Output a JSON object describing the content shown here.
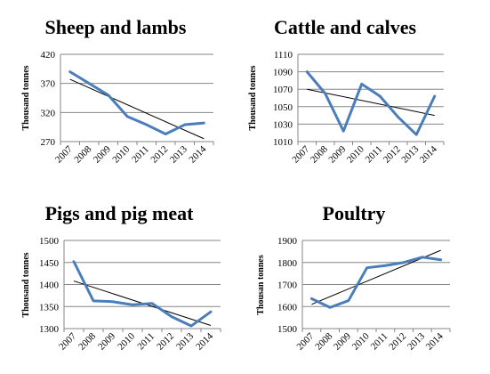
{
  "chart_data": [
    {
      "type": "line",
      "title": "Sheep and lambs",
      "ylabel": "Thousand tonnes",
      "xlabel": "",
      "categories": [
        "2007",
        "2008",
        "2009",
        "2010",
        "2011",
        "2012",
        "2013",
        "2014"
      ],
      "ylim": [
        270,
        420
      ],
      "yticks": [
        270,
        320,
        370,
        420
      ],
      "grid": "horizontal",
      "series": [
        {
          "values": [
            390,
            370,
            350,
            313,
            299,
            283,
            299,
            302
          ],
          "color": "#4a7ebb"
        }
      ],
      "trendline": {
        "values": [
          377,
          275
        ],
        "color": "#000000"
      }
    },
    {
      "type": "line",
      "title": "Cattle and calves",
      "ylabel": "Thousand tonnes",
      "xlabel": "",
      "categories": [
        "2007",
        "2008",
        "2009",
        "2010",
        "2011",
        "2012",
        "2013",
        "2014"
      ],
      "ylim": [
        1010,
        1110
      ],
      "yticks": [
        1010,
        1030,
        1050,
        1070,
        1090,
        1110
      ],
      "grid": "horizontal",
      "series": [
        {
          "values": [
            1090,
            1065,
            1022,
            1076,
            1062,
            1038,
            1018,
            1062
          ],
          "color": "#4a7ebb"
        }
      ],
      "trendline": {
        "values": [
          1070,
          1040
        ],
        "color": "#000000"
      }
    },
    {
      "type": "line",
      "title": "Pigs and pig meat",
      "ylabel": "Thousand tonnes",
      "xlabel": "",
      "categories": [
        "2007",
        "2008",
        "2009",
        "2010",
        "2011",
        "2012",
        "2013",
        "2014"
      ],
      "ylim": [
        1300,
        1500
      ],
      "yticks": [
        1300,
        1350,
        1400,
        1450,
        1500
      ],
      "grid": "horizontal",
      "series": [
        {
          "values": [
            1452,
            1363,
            1361,
            1354,
            1357,
            1327,
            1306,
            1338
          ],
          "color": "#4a7ebb"
        }
      ],
      "trendline": {
        "values": [
          1408,
          1307
        ],
        "color": "#000000"
      }
    },
    {
      "type": "line",
      "title": "Poultry",
      "ylabel": "Thousan tonnes",
      "xlabel": "",
      "categories": [
        "2007",
        "2008",
        "2009",
        "2010",
        "2011",
        "2012",
        "2013",
        "2014"
      ],
      "ylim": [
        1500,
        1900
      ],
      "yticks": [
        1500,
        1600,
        1700,
        1800,
        1900
      ],
      "grid": "horizontal",
      "series": [
        {
          "values": [
            1636,
            1596,
            1627,
            1776,
            1786,
            1800,
            1824,
            1812
          ],
          "color": "#4a7ebb"
        }
      ],
      "trendline": {
        "values": [
          1610,
          1855
        ],
        "color": "#000000"
      }
    }
  ]
}
